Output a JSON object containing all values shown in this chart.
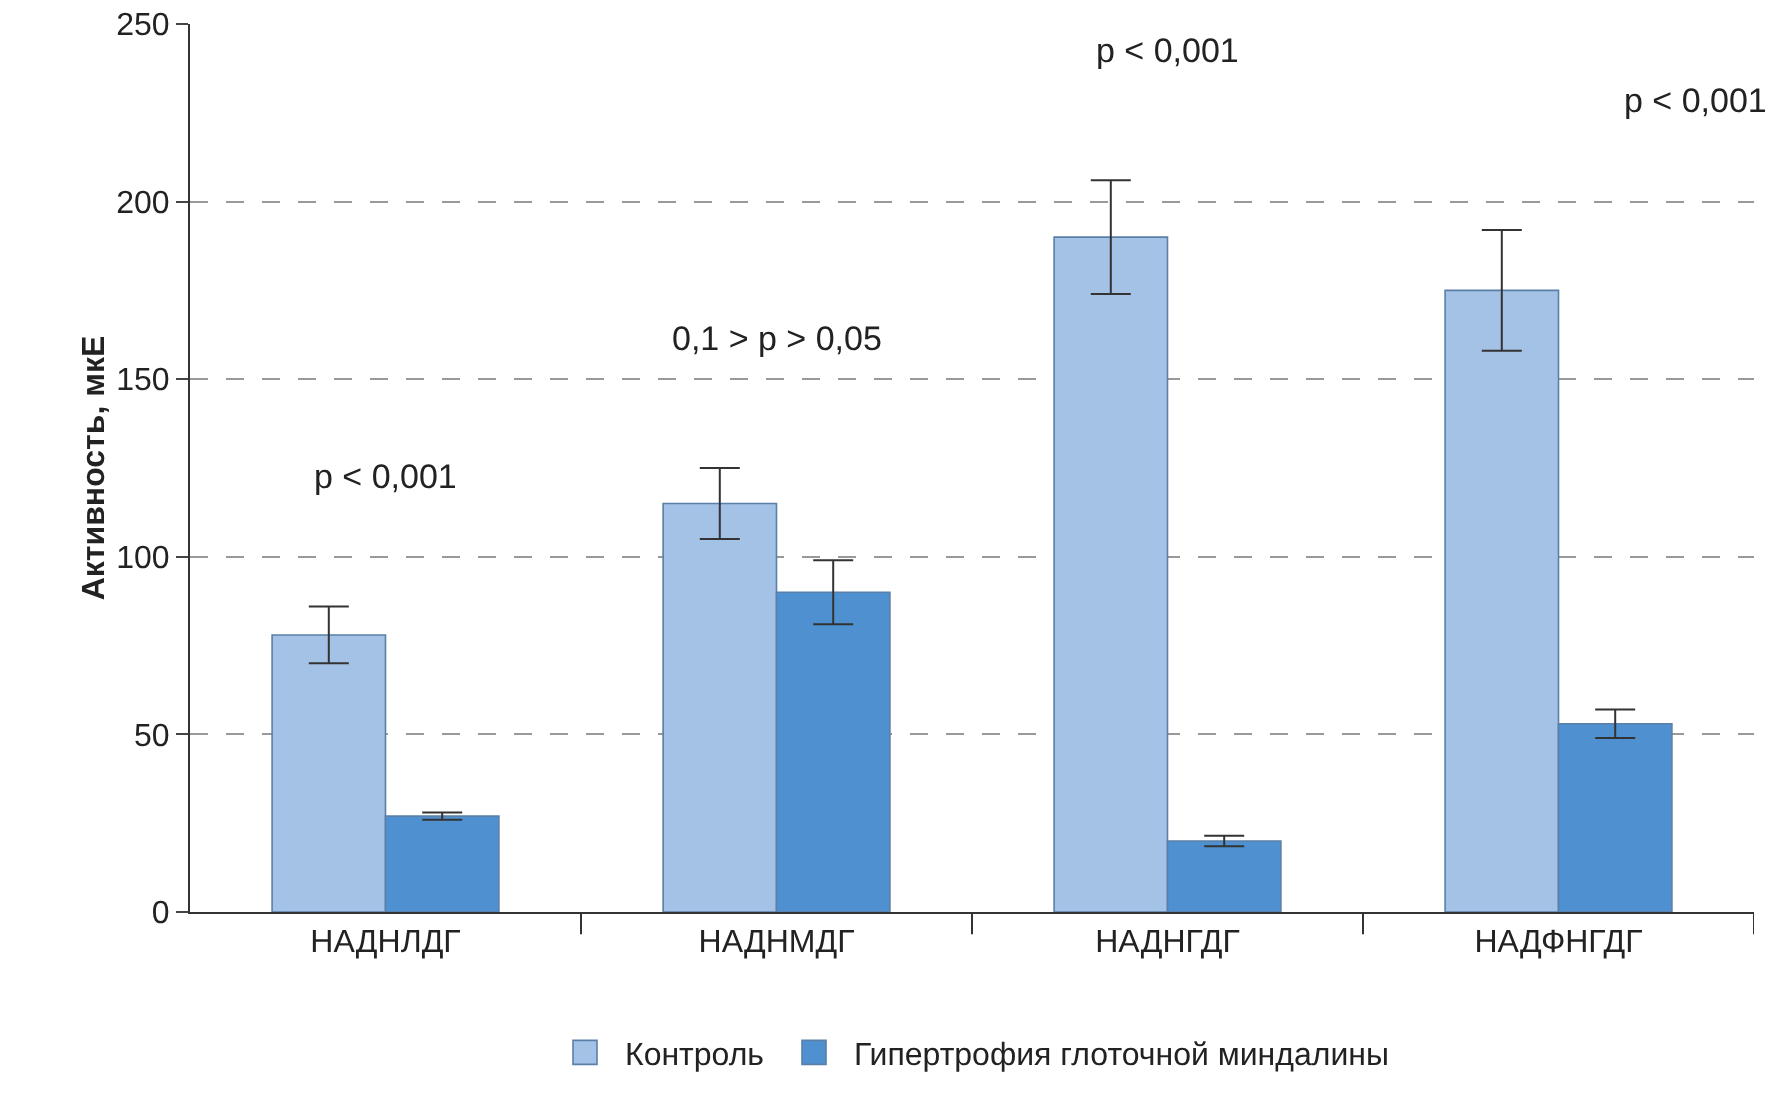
{
  "chart_data": {
    "type": "bar",
    "ylabel": "Активность, мкЕ",
    "categories": [
      "НАДНЛДГ",
      "НАДНМДГ",
      "НАДНГДГ",
      "НАДФНГДГ"
    ],
    "series": [
      {
        "name": "Контроль",
        "color": "#a4c2e6",
        "values": [
          78,
          115,
          190,
          175
        ],
        "errors": [
          8,
          10,
          16,
          17
        ]
      },
      {
        "name": "Гипертрофия глоточной миндалины",
        "color": "#4e90d0",
        "values": [
          27,
          90,
          20,
          53
        ],
        "errors": [
          1,
          9,
          1.5,
          4
        ]
      }
    ],
    "ylim": [
      0,
      250
    ],
    "yticks": [
      0,
      50,
      100,
      150,
      200,
      250
    ],
    "grid": "y",
    "legend": "bottom",
    "annotations": [
      "p < 0,001",
      "0,1 > p > 0,05",
      "p < 0,001",
      "p < 0,001"
    ]
  }
}
